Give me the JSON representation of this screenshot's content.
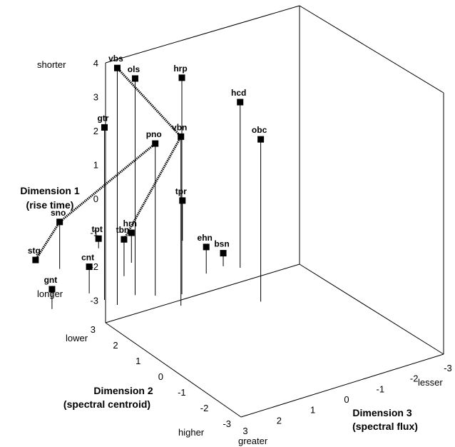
{
  "chart_data": {
    "type": "scatter",
    "projection": "3d",
    "axes": {
      "d1": {
        "title_lines": [
          "Dimension 1",
          "(rise time)"
        ],
        "ticks": [
          4,
          3,
          2,
          1,
          0,
          -1,
          -2,
          -3
        ],
        "range": [
          -3,
          4
        ],
        "high_label": "shorter",
        "low_label": "longer"
      },
      "d2": {
        "title_lines": [
          "Dimension 2",
          "(spectral centroid)"
        ],
        "ticks": [
          3,
          2,
          1,
          0,
          -1,
          -2,
          -3
        ],
        "range": [
          -3,
          3
        ],
        "high_label": "lower",
        "low_label": "higher"
      },
      "d3": {
        "title_lines": [
          "Dimension 3",
          "(spectral flux)"
        ],
        "ticks": [
          3,
          2,
          1,
          0,
          -1,
          -2,
          -3
        ],
        "range": [
          -3,
          3
        ],
        "high_label": "greater",
        "low_label": "lesser"
      }
    },
    "points": [
      {
        "label": "vbs",
        "d1": 3.9,
        "d2": 1.3,
        "d3": -1.2
      },
      {
        "label": "ols",
        "d1": 3.3,
        "d2": 0.6,
        "d3": -1.0
      },
      {
        "label": "hrp",
        "d1": 3.3,
        "d2": -0.4,
        "d3": -1.6
      },
      {
        "label": "gtr",
        "d1": 2.0,
        "d2": 1.4,
        "d3": -0.8
      },
      {
        "label": "vbn",
        "d1": 1.9,
        "d2": 0.0,
        "d3": -2.1
      },
      {
        "label": "pno",
        "d1": 1.4,
        "d2": 0.2,
        "d3": -1.3
      },
      {
        "label": "hcd",
        "d1": 1.8,
        "d2": -2.5,
        "d3": -1.2
      },
      {
        "label": "obc",
        "d1": 1.7,
        "d2": -1.8,
        "d3": -3.0
      },
      {
        "label": "tbn",
        "d1": -2.0,
        "d2": 0.2,
        "d3": 0.0
      },
      {
        "label": "cnt",
        "d1": -2.3,
        "d2": 1.5,
        "d3": -0.3
      },
      {
        "label": "gnt",
        "d1": -2.5,
        "d2": 2.8,
        "d3": -0.5
      },
      {
        "label": "tpr",
        "d1": -1.9,
        "d2": -2.2,
        "d3": 0.8
      },
      {
        "label": "ehn",
        "d1": -2.3,
        "d2": -1.6,
        "d3": -1.0
      },
      {
        "label": "hrn",
        "d1": -2.2,
        "d2": -0.4,
        "d3": 0.5
      },
      {
        "label": "bsn",
        "d1": -2.7,
        "d2": -2.2,
        "d3": -0.9
      },
      {
        "label": "sno",
        "d1": -1.7,
        "d2": 1.3,
        "d3": 1.2
      },
      {
        "label": "stg",
        "d1": -3.0,
        "d2": 1.6,
        "d3": 1.8
      },
      {
        "label": "tpt",
        "d1": -2.8,
        "d2": -0.2,
        "d3": 1.6
      }
    ],
    "links": [
      [
        "vbs",
        "vbn"
      ],
      [
        "vbn",
        "tbn"
      ],
      [
        "pno",
        "sno"
      ],
      [
        "sno",
        "stg"
      ]
    ]
  }
}
